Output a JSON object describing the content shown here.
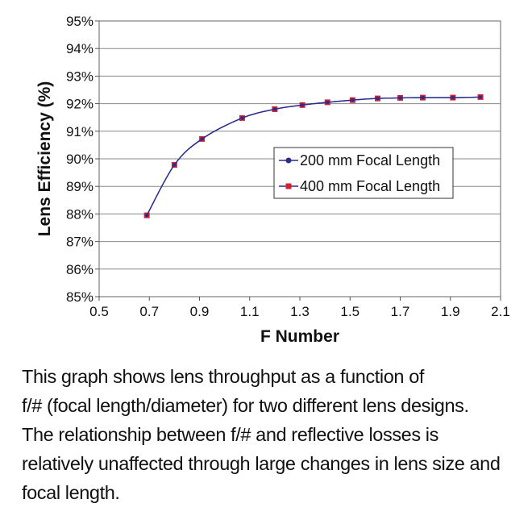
{
  "colors": {
    "series1": "#2b2c8c",
    "series2": "#d42030"
  },
  "chart_data": {
    "type": "line",
    "xlabel": "F Number",
    "ylabel": "Lens Efficiency (%)",
    "xlim": [
      0.5,
      2.1
    ],
    "ylim": [
      85,
      95
    ],
    "xticks": [
      "0.5",
      "0.7",
      "0.9",
      "1.1",
      "1.3",
      "1.5",
      "1.7",
      "1.9",
      "2.1"
    ],
    "yticks": [
      "85%",
      "86%",
      "87%",
      "88%",
      "89%",
      "90%",
      "91%",
      "92%",
      "93%",
      "94%",
      "95%"
    ],
    "grid": "horizontal",
    "legend_position": "center-right",
    "series": [
      {
        "name": "200 mm Focal Length",
        "marker": "circle",
        "x": [
          0.69,
          0.8,
          0.91,
          1.07,
          1.2,
          1.31,
          1.41,
          1.51,
          1.61,
          1.7,
          1.79,
          1.91,
          2.02
        ],
        "y": [
          87.95,
          89.78,
          90.72,
          91.48,
          91.8,
          91.95,
          92.05,
          92.13,
          92.19,
          92.21,
          92.22,
          92.22,
          92.24
        ]
      },
      {
        "name": "400 mm Focal Length",
        "marker": "square",
        "x": [
          0.69,
          0.8,
          0.91,
          1.07,
          1.2,
          1.31,
          1.41,
          1.51,
          1.61,
          1.7,
          1.79,
          1.91,
          2.02
        ],
        "y": [
          87.95,
          89.78,
          90.72,
          91.48,
          91.8,
          91.95,
          92.05,
          92.13,
          92.19,
          92.21,
          92.22,
          92.22,
          92.24
        ]
      }
    ]
  },
  "caption": {
    "lines": [
      "This graph shows lens throughput as a function of",
      "f/# (focal length/diameter) for two different lens designs.",
      "The relationship between f/# and reflective losses is",
      "relatively unaffected through large changes in lens size and",
      "focal length."
    ]
  }
}
